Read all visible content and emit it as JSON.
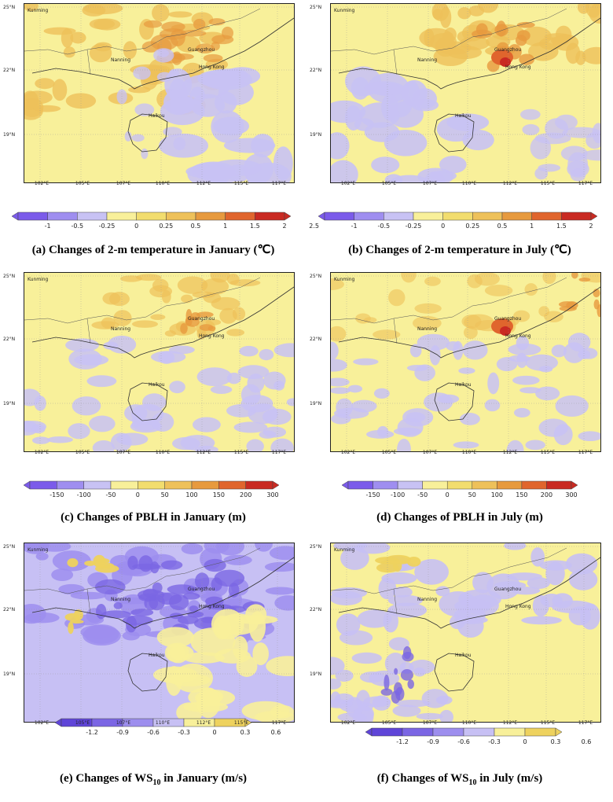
{
  "axes": {
    "lat_labels": [
      "25°N",
      "22°N",
      "19°N"
    ],
    "lon_labels": [
      "102°E",
      "105°E",
      "107°E",
      "110°E",
      "112°E",
      "115°E",
      "117°E"
    ]
  },
  "cities": [
    "Kunming",
    "Nanning",
    "Guangzhou",
    "Hong Kong",
    "Haikou"
  ],
  "colors": {
    "temp": [
      "#7b5bea",
      "#9f8ef0",
      "#c8c2f4",
      "#f8f09a",
      "#f2dd6e",
      "#eec15a",
      "#e79a3e",
      "#e0652d",
      "#c92a22"
    ],
    "pblh": [
      "#7b5bea",
      "#9f8ef0",
      "#c8c2f4",
      "#f8f09a",
      "#f2dd6e",
      "#eec15a",
      "#e79a3e",
      "#e0652d",
      "#c92a22"
    ],
    "ws": [
      "#5f45d8",
      "#7b66e4",
      "#9d8eee",
      "#c7c0f4",
      "#f8f09a",
      "#eed25e"
    ]
  },
  "panels": [
    {
      "id": "a",
      "letter": "(a)",
      "caption": "Changes of 2-m temperature in January (℃)",
      "ticks": [
        "-1",
        "-0.5",
        "-0.25",
        "0",
        "0.25",
        "0.5",
        "1",
        "1.5",
        "2",
        "2.5"
      ],
      "scale": "temp"
    },
    {
      "id": "b",
      "letter": "(b)",
      "caption": "Changes of 2-m temperature in July (℃)",
      "ticks": [
        "-1",
        "-0.5",
        "-0.25",
        "0",
        "0.25",
        "0.5",
        "1",
        "1.5",
        "2",
        "2.5"
      ],
      "scale": "temp"
    },
    {
      "id": "c",
      "letter": "(c)",
      "caption": "Changes of PBLH in January (m)",
      "ticks": [
        "-150",
        "-100",
        "-50",
        "0",
        "50",
        "100",
        "150",
        "200",
        "300"
      ],
      "scale": "pblh"
    },
    {
      "id": "d",
      "letter": "(d)",
      "caption": "Changes of PBLH in July (m)",
      "ticks": [
        "-150",
        "-100",
        "-50",
        "0",
        "50",
        "100",
        "150",
        "200",
        "300"
      ],
      "scale": "pblh"
    },
    {
      "id": "e",
      "letter": "(e)",
      "caption_pre": "Changes of WS",
      "caption_sub": "10",
      "caption_post": " in January (m/s)",
      "ticks": [
        "-1.2",
        "-0.9",
        "-0.6",
        "-0.3",
        "0",
        "0.3",
        "0.6"
      ],
      "scale": "ws"
    },
    {
      "id": "f",
      "letter": "(f)",
      "caption_pre": "Changes of WS",
      "caption_sub": "10",
      "caption_post": " in July (m/s)",
      "ticks": [
        "-1.2",
        "-0.9",
        "-0.6",
        "-0.3",
        "0",
        "0.3",
        "0.6"
      ],
      "scale": "ws"
    }
  ]
}
